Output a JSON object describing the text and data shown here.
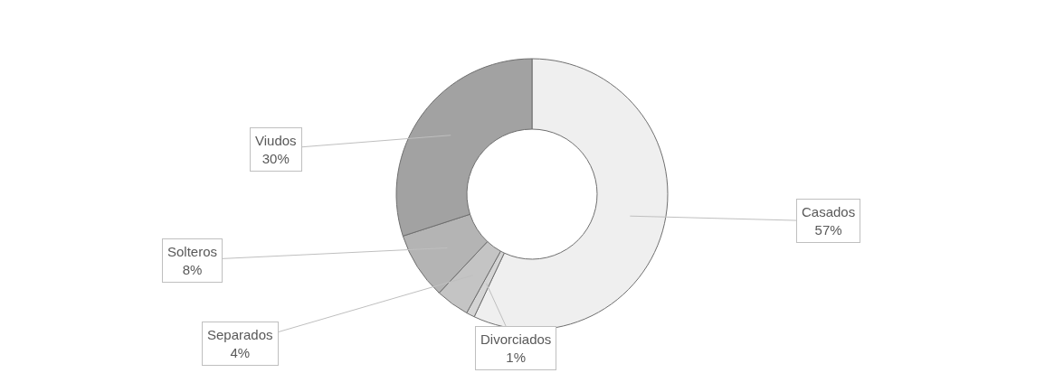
{
  "chart_data": {
    "type": "donut",
    "categories": [
      "Casados",
      "Divorciados",
      "Separados",
      "Solteros",
      "Viudos"
    ],
    "values": [
      57,
      1,
      4,
      8,
      30
    ],
    "colors": [
      "#efefef",
      "#d4d4d4",
      "#c4c4c4",
      "#b4b4b4",
      "#a2a2a2"
    ],
    "value_labels": [
      "57%",
      "1%",
      "4%",
      "8%",
      "30%"
    ]
  }
}
